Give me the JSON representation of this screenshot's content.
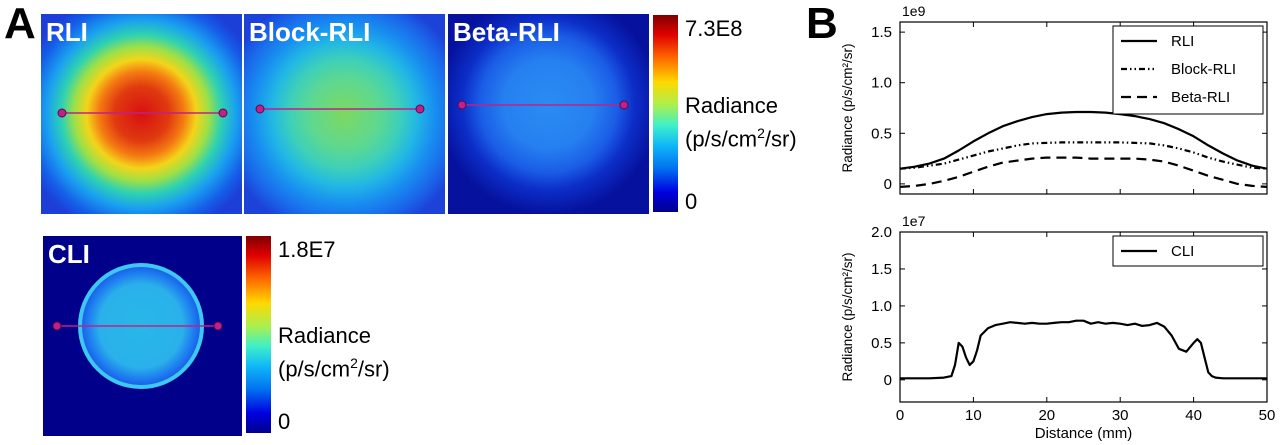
{
  "panel_a": {
    "letter": "A",
    "images": [
      {
        "title": "RLI",
        "intensity": 1.0
      },
      {
        "title": "Block-RLI",
        "intensity": 0.55
      },
      {
        "title": "Beta-RLI",
        "intensity": 0.32
      }
    ],
    "colorbar_top": {
      "max_label": "7.3E8",
      "min_label": "0",
      "label_line1": "Radiance",
      "label_line2_pre": "(p/s/cm",
      "label_line2_sup": "2",
      "label_line2_post": "/sr)"
    },
    "cli_image": {
      "title": "CLI"
    },
    "colorbar_bottom": {
      "max_label": "1.8E7",
      "min_label": "0",
      "label_line1": "Radiance",
      "label_line2_pre": "(p/s/cm",
      "label_line2_sup": "2",
      "label_line2_post": "/sr)"
    },
    "colors": {
      "background": "#00008b",
      "line_marker": "#c0208a"
    }
  },
  "panel_b": {
    "letter": "B",
    "chart_data": [
      {
        "type": "line",
        "ylabel": "Radiance (p/s/cm²/sr)",
        "xlabel": "",
        "scale_label": "1e9",
        "xlim": [
          0,
          50
        ],
        "ylim": [
          -0.1,
          1.6
        ],
        "yticks": [
          0,
          0.5,
          1.0,
          1.5
        ],
        "ytick_labels": [
          "0",
          "0.5",
          "1.0",
          "1.5"
        ],
        "legend_position": "top-right",
        "series": [
          {
            "name": "RLI",
            "style": "solid",
            "x": [
              0,
              2,
              4,
              6,
              8,
              10,
              12,
              14,
              16,
              18,
              20,
              22,
              24,
              26,
              28,
              30,
              32,
              34,
              36,
              38,
              40,
              42,
              44,
              46,
              48,
              50
            ],
            "y": [
              0.15,
              0.17,
              0.2,
              0.25,
              0.33,
              0.42,
              0.5,
              0.57,
              0.62,
              0.66,
              0.69,
              0.705,
              0.71,
              0.71,
              0.705,
              0.69,
              0.67,
              0.64,
              0.6,
              0.54,
              0.47,
              0.38,
              0.3,
              0.23,
              0.18,
              0.15
            ]
          },
          {
            "name": "Block-RLI",
            "style": "dashdot",
            "x": [
              0,
              2,
              4,
              6,
              8,
              10,
              12,
              14,
              16,
              18,
              20,
              22,
              24,
              26,
              28,
              30,
              32,
              34,
              36,
              38,
              40,
              42,
              44,
              46,
              48,
              50
            ],
            "y": [
              0.15,
              0.16,
              0.18,
              0.2,
              0.24,
              0.28,
              0.32,
              0.35,
              0.38,
              0.4,
              0.405,
              0.41,
              0.41,
              0.41,
              0.41,
              0.41,
              0.405,
              0.4,
              0.38,
              0.35,
              0.31,
              0.26,
              0.22,
              0.19,
              0.16,
              0.15
            ]
          },
          {
            "name": "Beta-RLI",
            "style": "dashed",
            "x": [
              0,
              2,
              4,
              6,
              8,
              10,
              12,
              14,
              16,
              18,
              20,
              22,
              24,
              26,
              28,
              30,
              32,
              34,
              36,
              38,
              40,
              42,
              44,
              46,
              48,
              50
            ],
            "y": [
              -0.03,
              -0.02,
              0.0,
              0.03,
              0.07,
              0.12,
              0.17,
              0.21,
              0.23,
              0.25,
              0.26,
              0.26,
              0.26,
              0.25,
              0.25,
              0.25,
              0.25,
              0.24,
              0.22,
              0.18,
              0.13,
              0.08,
              0.04,
              0.0,
              -0.02,
              -0.03
            ]
          }
        ]
      },
      {
        "type": "line",
        "ylabel": "Radiance (p/s/cm²/sr)",
        "xlabel": "Distance (mm)",
        "scale_label": "1e7",
        "xlim": [
          0,
          50
        ],
        "ylim": [
          -0.3,
          2.0
        ],
        "xticks": [
          0,
          10,
          20,
          30,
          40,
          50
        ],
        "xtick_labels": [
          "0",
          "10",
          "20",
          "30",
          "40",
          "50"
        ],
        "yticks": [
          0,
          0.5,
          1.0,
          1.5,
          2.0
        ],
        "ytick_labels": [
          "0",
          "0.5",
          "1.0",
          "1.5",
          "2.0"
        ],
        "legend_position": "top-right",
        "series": [
          {
            "name": "CLI",
            "style": "solid",
            "x": [
              0,
              2,
              4,
              6,
              7,
              7.5,
              8,
              8.5,
              9,
              9.5,
              10,
              10.5,
              11,
              12,
              13,
              14,
              15,
              16,
              17,
              18,
              19,
              20,
              21,
              22,
              23,
              24,
              25,
              26,
              27,
              28,
              29,
              30,
              31,
              32,
              33,
              34,
              35,
              36,
              37,
              38,
              39,
              40,
              40.5,
              41,
              41.5,
              42,
              42.5,
              43,
              44,
              46,
              48,
              50
            ],
            "y": [
              0.02,
              0.02,
              0.02,
              0.03,
              0.05,
              0.2,
              0.5,
              0.45,
              0.3,
              0.2,
              0.25,
              0.4,
              0.6,
              0.7,
              0.74,
              0.76,
              0.78,
              0.77,
              0.76,
              0.77,
              0.76,
              0.76,
              0.77,
              0.78,
              0.78,
              0.8,
              0.8,
              0.76,
              0.78,
              0.76,
              0.77,
              0.76,
              0.74,
              0.76,
              0.73,
              0.74,
              0.77,
              0.72,
              0.6,
              0.42,
              0.38,
              0.5,
              0.55,
              0.5,
              0.3,
              0.1,
              0.05,
              0.03,
              0.02,
              0.02,
              0.02,
              0.02
            ]
          }
        ]
      }
    ]
  }
}
